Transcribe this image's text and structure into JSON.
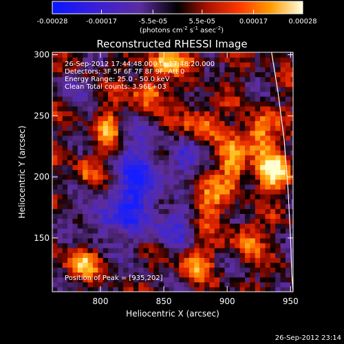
{
  "chart_data": {
    "type": "heatmap",
    "title": "Reconstructed RHESSI Image",
    "xlabel": "Heliocentric X (arcsec)",
    "ylabel": "Heliocentric Y (arcsec)",
    "xlim": [
      762,
      952
    ],
    "ylim": [
      106,
      302
    ],
    "x_ticks": [
      "800",
      "850",
      "900",
      "950"
    ],
    "y_ticks": [
      "150",
      "200",
      "250",
      "300"
    ],
    "colorbar": {
      "ticks": [
        "-0.00028",
        "-0.00017",
        "-5.5e-05",
        "5.5e-05",
        "0.00017",
        "0.00028"
      ],
      "range": [
        -0.00028,
        0.00028
      ],
      "label_main": "(photons cm",
      "label_exp1": "-2",
      "label_mid": " s",
      "label_exp2": "-1",
      "label_tail": " asec",
      "label_exp3": "-2",
      "label_close": ")"
    },
    "annotations": [
      "26-Sep-2012 17:44:48.000 to 17:48:20.000",
      "Detectors: 3F 5F 6F 7F 8F 9F, Att 0",
      "Energy Range: 25.0 - 50.0 keV",
      "Clean     Total counts: 3.96E+03"
    ],
    "peak_text": "Position of Peak = [935,202]",
    "peak": [
      935,
      202
    ],
    "limb": [
      [
        935,
        302
      ],
      [
        940,
        270
      ],
      [
        945,
        230
      ],
      [
        948,
        190
      ],
      [
        950,
        150
      ],
      [
        951,
        120
      ],
      [
        952,
        106
      ]
    ],
    "bright_features": [
      {
        "x": 935,
        "y": 205,
        "amp": 1.0,
        "sx": 9,
        "sy": 10
      },
      {
        "x": 925,
        "y": 235,
        "amp": 0.85,
        "sx": 8,
        "sy": 12
      },
      {
        "x": 905,
        "y": 210,
        "amp": 0.75,
        "sx": 7,
        "sy": 14
      },
      {
        "x": 880,
        "y": 245,
        "amp": 0.55,
        "sx": 10,
        "sy": 10
      },
      {
        "x": 885,
        "y": 180,
        "amp": 0.55,
        "sx": 9,
        "sy": 12
      },
      {
        "x": 838,
        "y": 270,
        "amp": 0.75,
        "sx": 8,
        "sy": 10
      },
      {
        "x": 850,
        "y": 295,
        "amp": 0.6,
        "sx": 9,
        "sy": 6
      },
      {
        "x": 805,
        "y": 240,
        "amp": 0.65,
        "sx": 6,
        "sy": 12
      },
      {
        "x": 790,
        "y": 205,
        "amp": 0.45,
        "sx": 7,
        "sy": 9
      },
      {
        "x": 785,
        "y": 130,
        "amp": 0.65,
        "sx": 10,
        "sy": 8
      },
      {
        "x": 875,
        "y": 130,
        "amp": 0.6,
        "sx": 9,
        "sy": 9
      },
      {
        "x": 915,
        "y": 150,
        "amp": 0.6,
        "sx": 8,
        "sy": 10
      },
      {
        "x": 870,
        "y": 295,
        "amp": 0.5,
        "sx": 10,
        "sy": 5
      }
    ],
    "dark_features": [
      {
        "x": 830,
        "y": 190,
        "amp": -0.9,
        "sx": 14,
        "sy": 28
      },
      {
        "x": 800,
        "y": 165,
        "amp": -0.6,
        "sx": 10,
        "sy": 12
      },
      {
        "x": 865,
        "y": 215,
        "amp": -0.5,
        "sx": 10,
        "sy": 10
      },
      {
        "x": 775,
        "y": 275,
        "amp": -0.4,
        "sx": 8,
        "sy": 10
      },
      {
        "x": 860,
        "y": 160,
        "amp": -0.5,
        "sx": 10,
        "sy": 10
      }
    ]
  },
  "footer": {
    "timestamp": "26-Sep-2012 23:14"
  }
}
